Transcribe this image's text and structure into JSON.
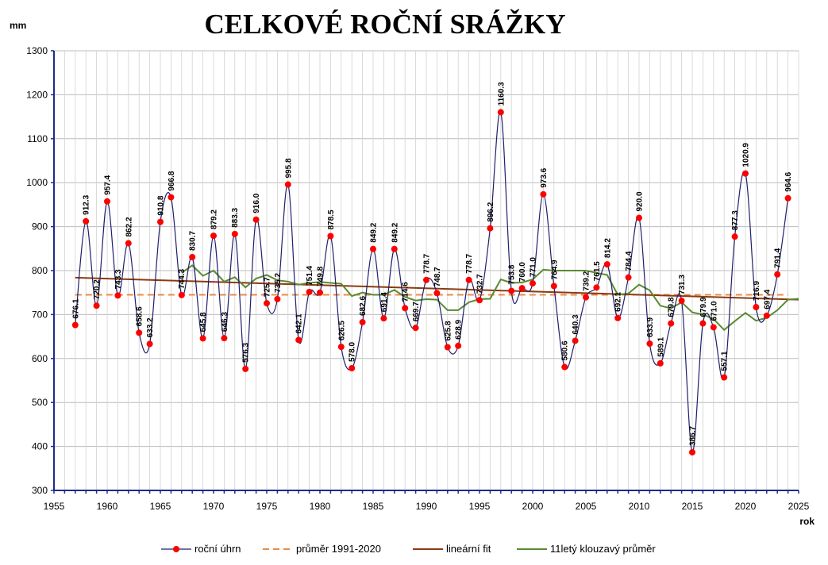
{
  "title": "CELKOVÉ ROČNÍ SRÁŽKY",
  "chart_data": {
    "type": "line",
    "title": "CELKOVÉ ROČNÍ SRÁŽKY",
    "xlabel": "rok",
    "ylabel": "mm",
    "xlim": [
      1955,
      2025
    ],
    "ylim": [
      300,
      1300
    ],
    "xticks": [
      1955,
      1960,
      1965,
      1970,
      1975,
      1980,
      1985,
      1990,
      1995,
      2000,
      2005,
      2010,
      2015,
      2020,
      2025
    ],
    "yticks": [
      300,
      400,
      500,
      600,
      700,
      800,
      900,
      1000,
      1100,
      1200,
      1300
    ],
    "grid": true,
    "legend_position": "bottom",
    "colors": {
      "annual": "#1f1f6e",
      "marker": "#ff0000",
      "mean": "#e98b45",
      "fit": "#8b3a12",
      "moving": "#5a8a32"
    },
    "series": [
      {
        "name": "roční úhrn",
        "x": [
          1957,
          1958,
          1959,
          1960,
          1961,
          1962,
          1963,
          1964,
          1965,
          1966,
          1967,
          1968,
          1969,
          1970,
          1971,
          1972,
          1973,
          1974,
          1975,
          1976,
          1977,
          1978,
          1979,
          1980,
          1981,
          1982,
          1983,
          1984,
          1985,
          1986,
          1987,
          1988,
          1989,
          1990,
          1991,
          1992,
          1993,
          1994,
          1995,
          1996,
          1997,
          1998,
          1999,
          2000,
          2001,
          2002,
          2003,
          2004,
          2005,
          2006,
          2007,
          2008,
          2009,
          2010,
          2011,
          2012,
          2013,
          2014,
          2015,
          2016,
          2017,
          2018,
          2019,
          2020,
          2021,
          2022,
          2023,
          2024
        ],
        "y": [
          676.1,
          912.3,
          720.2,
          957.4,
          743.3,
          862.2,
          658.6,
          633.2,
          910.8,
          966.8,
          744.3,
          830.7,
          645.8,
          879.2,
          646.3,
          883.3,
          576.3,
          916.0,
          725.7,
          735.2,
          995.8,
          642.1,
          751.4,
          749.8,
          878.5,
          626.5,
          578.0,
          682.6,
          849.2,
          691.4,
          849.2,
          714.6,
          669.7,
          778.7,
          748.7,
          625.8,
          628.9,
          778.7,
          732.7,
          896.2,
          1160.3,
          753.8,
          760.0,
          771.0,
          973.6,
          764.9,
          580.6,
          640.3,
          739.2,
          761.5,
          814.2,
          692.1,
          784.4,
          920.0,
          633.9,
          589.1,
          679.8,
          731.3,
          386.7,
          679.9,
          671.0,
          557.1,
          877.3,
          1020.9,
          716.9,
          697.4,
          791.4,
          964.6
        ],
        "labels": [
          "676.1",
          "912.3",
          "720.2",
          "957.4",
          "743.3",
          "862.2",
          "658.6",
          "633.2",
          "910.8",
          "966.8",
          "744.3",
          "830.7",
          "645.8",
          "879.2",
          "646.3",
          "883.3",
          "576.3",
          "916.0",
          "725.7",
          "735.2",
          "995.8",
          "642.1",
          "751.4",
          "749.8",
          "878.5",
          "626.5",
          "578.0",
          "682.6",
          "849.2",
          "691.4",
          "849.2",
          "714.6",
          "669.7",
          "778.7",
          "748.7",
          "625.8",
          "628.9",
          "778.7",
          "732.7",
          "896.2",
          "1160.3",
          "753.8",
          "760.0",
          "771.0",
          "973.6",
          "764.9",
          "580.6",
          "640.3",
          "739.2",
          "761.5",
          "814.2",
          "692.1",
          "784.4",
          "920.0",
          "633.9",
          "589.1",
          "679.8",
          "731.3",
          "386.7",
          "679.9",
          "671.0",
          "557.1",
          "877.3",
          "1020.9",
          "716.9",
          "697.4",
          "791.4",
          "964.6"
        ]
      },
      {
        "name": "průměr 1991-2020",
        "x": [
          1957,
          2024
        ],
        "y": [
          745,
          745
        ]
      },
      {
        "name": "lineární fit",
        "x": [
          1957,
          2025
        ],
        "y": [
          784,
          734
        ]
      },
      {
        "name": "11letý klouzavý průměr",
        "x": [
          1967,
          1968,
          1969,
          1970,
          1971,
          1972,
          1973,
          1974,
          1975,
          1976,
          1977,
          1978,
          1979,
          1980,
          1981,
          1982,
          1983,
          1984,
          1985,
          1986,
          1987,
          1988,
          1989,
          1990,
          1991,
          1992,
          1993,
          1994,
          1995,
          1996,
          1997,
          1998,
          1999,
          2000,
          2001,
          2002,
          2003,
          2004,
          2005,
          2006,
          2007,
          2008,
          2009,
          2010,
          2011,
          2012,
          2013,
          2014,
          2015,
          2016,
          2017,
          2018,
          2019,
          2020,
          2021,
          2022,
          2023,
          2024,
          2025
        ],
        "y": [
          795,
          812,
          788,
          800,
          775,
          785,
          762,
          782,
          790,
          778,
          775,
          768,
          772,
          774,
          772,
          770,
          742,
          750,
          745,
          745,
          756,
          740,
          732,
          735,
          734,
          710,
          710,
          728,
          735,
          736,
          780,
          772,
          773,
          780,
          802,
          800,
          800,
          800,
          800,
          795,
          790,
          745,
          748,
          768,
          755,
          720,
          714,
          728,
          705,
          700,
          690,
          665,
          685,
          704,
          686,
          693,
          710,
          734,
          736
        ]
      }
    ]
  }
}
